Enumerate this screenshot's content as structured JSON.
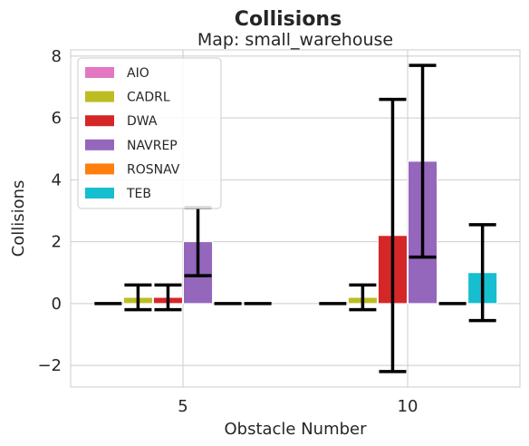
{
  "chart_data": {
    "type": "bar",
    "suptitle": "Collisions",
    "title": "Map: small_warehouse",
    "xlabel": "Obstacle Number",
    "ylabel": "Collisions",
    "categories": [
      "5",
      "10"
    ],
    "ylim": [
      -2.7,
      8.2
    ],
    "yticks": [
      -2,
      0,
      2,
      4,
      6,
      8
    ],
    "grid": true,
    "legend_position": "upper-left",
    "series": [
      {
        "name": "AIO",
        "color": "#e377c2",
        "values": [
          0.0,
          0.0
        ],
        "err_low": [
          0.0,
          0.0
        ],
        "err_high": [
          0.0,
          0.0
        ]
      },
      {
        "name": "CADRL",
        "color": "#bcbd22",
        "values": [
          0.2,
          0.2
        ],
        "err_low": [
          -0.2,
          -0.2
        ],
        "err_high": [
          0.6,
          0.6
        ]
      },
      {
        "name": "DWA",
        "color": "#d62728",
        "values": [
          0.2,
          2.2
        ],
        "err_low": [
          -0.2,
          -2.2
        ],
        "err_high": [
          0.6,
          6.6
        ]
      },
      {
        "name": "NAVREP",
        "color": "#9467bd",
        "values": [
          2.0,
          4.6
        ],
        "err_low": [
          0.9,
          1.5
        ],
        "err_high": [
          3.1,
          7.7
        ]
      },
      {
        "name": "ROSNAV",
        "color": "#ff7f0e",
        "values": [
          0.0,
          0.0
        ],
        "err_low": [
          0.0,
          0.0
        ],
        "err_high": [
          0.0,
          0.0
        ]
      },
      {
        "name": "TEB",
        "color": "#17becf",
        "values": [
          0.0,
          1.0
        ],
        "err_low": [
          0.0,
          -0.55
        ],
        "err_high": [
          0.0,
          2.55
        ]
      }
    ]
  }
}
